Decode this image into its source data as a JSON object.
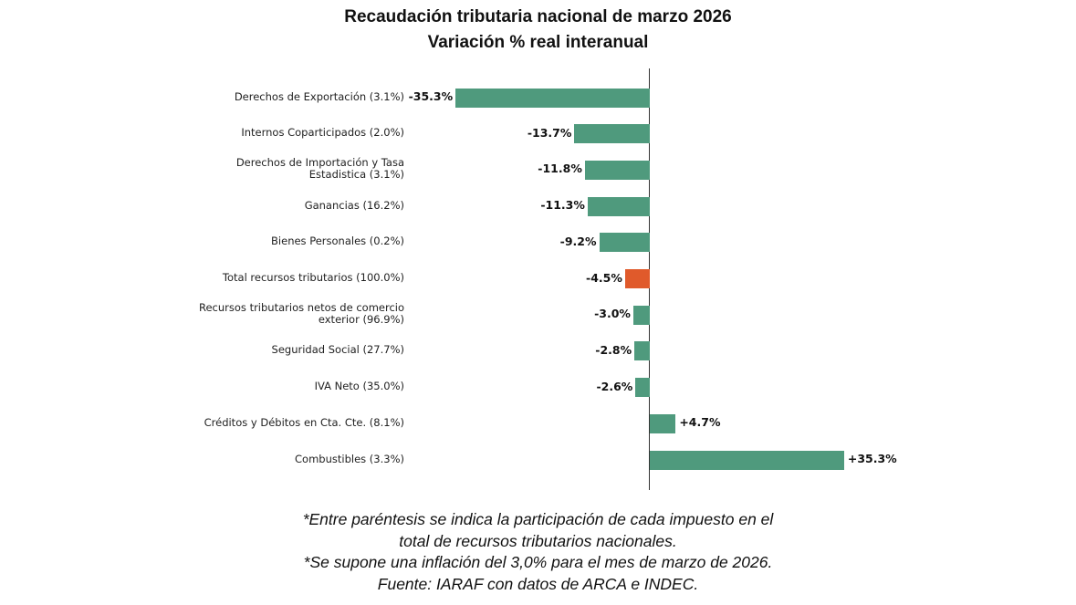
{
  "chart_data": {
    "type": "bar",
    "orientation": "horizontal",
    "title": "Recaudación tributaria nacional de marzo 2026",
    "subtitle": "Variación % real interanual",
    "categories": [
      "Derechos de Exportación (3.1%)",
      "Internos Coparticipados (2.0%)",
      "Derechos de Importación y Tasa\nEstadistica (3.1%)",
      "Ganancias (16.2%)",
      "Bienes Personales (0.2%)",
      "Total recursos tributarios (100.0%)",
      "Recursos tributarios netos de comercio\nexterior (96.9%)",
      "Seguridad Social (27.7%)",
      "IVA Neto (35.0%)",
      "Créditos y Débitos en Cta. Cte. (8.1%)",
      "Combustibles (3.3%)"
    ],
    "values": [
      -35.3,
      -13.7,
      -11.8,
      -11.3,
      -9.2,
      -4.5,
      -3.0,
      -2.8,
      -2.6,
      4.7,
      35.3
    ],
    "data_labels": [
      "-35.3%",
      "-13.7%",
      "-11.8%",
      "-11.3%",
      "-9.2%",
      "-4.5%",
      "-3.0%",
      "-2.8%",
      "-2.6%",
      "+4.7%",
      "+35.3%"
    ],
    "highlight_index": 5,
    "colors": {
      "default": "#4f9a7d",
      "highlight": "#e05a2b"
    },
    "xlim": [
      -40,
      40
    ],
    "grid": false,
    "legend": "none"
  },
  "notes": [
    "*Entre paréntesis se indica la participación de cada impuesto en el",
    "total de recursos tributarios nacionales.",
    "*Se supone una inflación del 3,0% para el mes de marzo de 2026.",
    "Fuente: IARAF con datos de ARCA e INDEC."
  ]
}
